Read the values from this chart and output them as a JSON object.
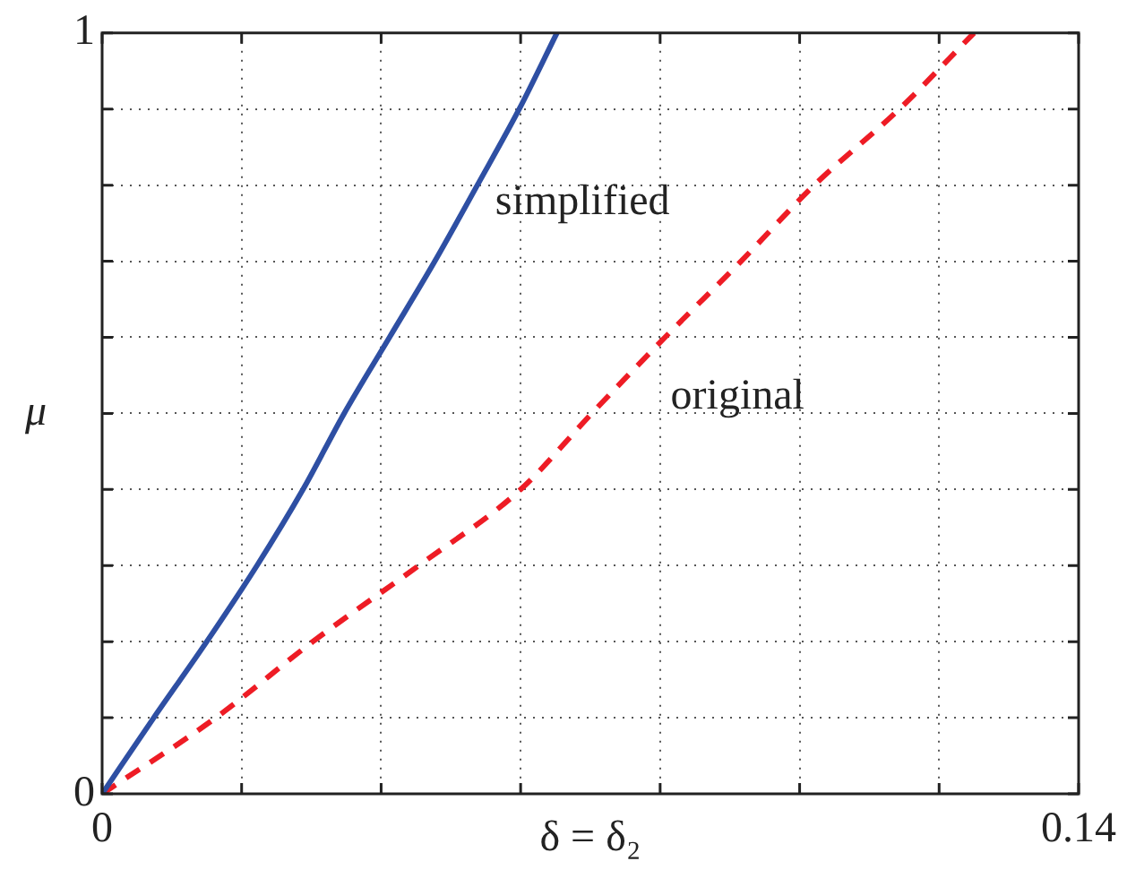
{
  "chart_data": {
    "type": "line",
    "xlabel": "δ = δ₂",
    "ylabel": "μ",
    "xlim": [
      0,
      0.14
    ],
    "xticks": [
      0,
      {
        "value": 0.02,
        "label": null
      },
      {
        "value": 0.04,
        "label": null
      },
      {
        "value": 0.06,
        "label": null
      },
      {
        "value": 0.08,
        "label": null
      },
      {
        "value": 0.1,
        "label": null
      },
      {
        "value": 0.12,
        "label": null
      },
      0.14
    ],
    "ylim": [
      0,
      1
    ],
    "yticks": [
      0,
      {
        "value": 0.1,
        "label": null
      },
      {
        "value": 0.2,
        "label": null
      },
      {
        "value": 0.3,
        "label": null
      },
      {
        "value": 0.4,
        "label": null
      },
      {
        "value": 0.5,
        "label": null
      },
      {
        "value": 0.6,
        "label": null
      },
      {
        "value": 0.7,
        "label": null
      },
      {
        "value": 0.8,
        "label": null
      },
      {
        "value": 0.9,
        "label": null
      },
      1
    ],
    "grid": true,
    "legend": false,
    "marker": "none",
    "series": [
      {
        "name": "simplified",
        "color": "#2e4fa3",
        "line_style": "solid",
        "x": [
          0,
          0.0074,
          0.015,
          0.0222,
          0.0288,
          0.0347,
          0.0412,
          0.0477,
          0.0538,
          0.0598,
          0.0652
        ],
        "values": [
          0,
          0.1,
          0.2,
          0.3,
          0.4,
          0.5,
          0.6,
          0.7,
          0.8,
          0.9,
          1
        ]
      },
      {
        "name": "original",
        "color": "#ee1c25",
        "line_style": "dashed",
        "x": [
          0,
          0.0163,
          0.0302,
          0.0454,
          0.06,
          0.0702,
          0.0807,
          0.0916,
          0.1021,
          0.1143,
          0.125
        ],
        "values": [
          0,
          0.1,
          0.2,
          0.3,
          0.4,
          0.5,
          0.6,
          0.7,
          0.8,
          0.9,
          1
        ]
      }
    ]
  }
}
